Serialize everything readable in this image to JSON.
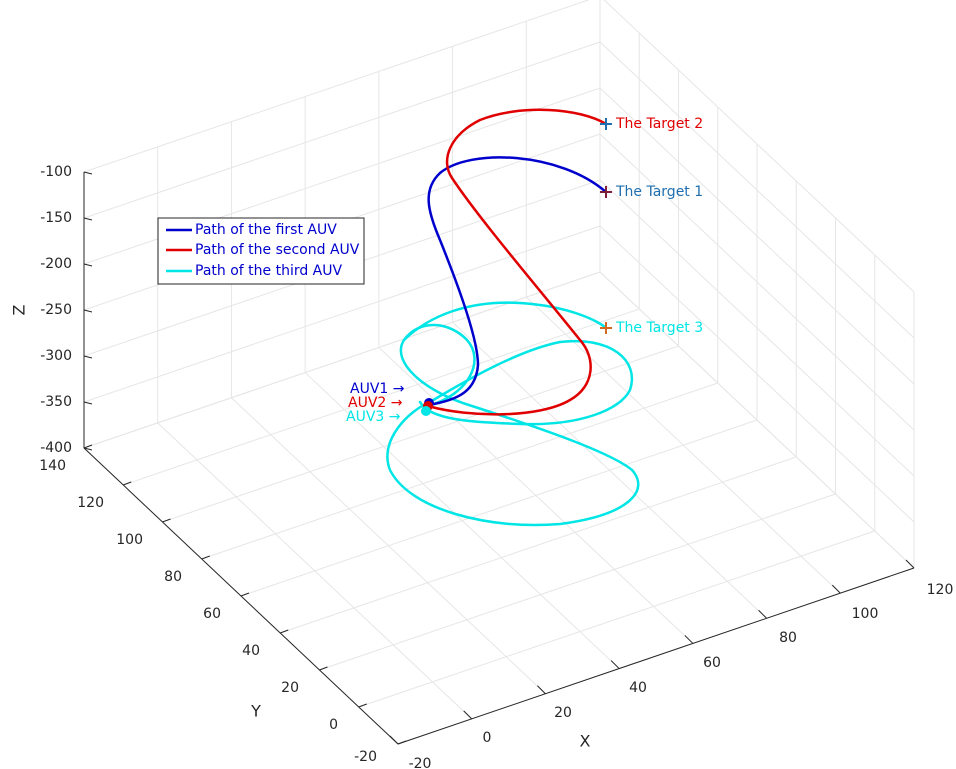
{
  "chart_data": {
    "type": "line3d",
    "xlabel": "X",
    "ylabel": "Y",
    "zlabel": "Z",
    "xlim": [
      -20,
      120
    ],
    "ylim": [
      -20,
      140
    ],
    "zlim": [
      -400,
      -100
    ],
    "x_ticks": [
      "-20",
      "0",
      "20",
      "40",
      "60",
      "80",
      "100",
      "120"
    ],
    "y_ticks": [
      "-20",
      "0",
      "20",
      "40",
      "60",
      "80",
      "100",
      "120",
      "140"
    ],
    "z_ticks": [
      "-100",
      "-150",
      "-200",
      "-250",
      "-300",
      "-350",
      "-400"
    ],
    "grid": true,
    "legend_position": "upper-left",
    "colors": {
      "auv1": "#0000cd",
      "auv2": "#e00000",
      "auv3": "#00e5e5",
      "axis": "#262626",
      "grid": "#e6e6e6"
    },
    "series": [
      {
        "name": "Path of the first AUV",
        "color": "#0000cd"
      },
      {
        "name": "Path of the second AUV",
        "color": "#e00000"
      },
      {
        "name": "Path of the third AUV",
        "color": "#00e5e5"
      }
    ],
    "annotations": {
      "start1": "AUV1 →",
      "start2": "AUV2 →",
      "start3": "AUV3 →",
      "target1": "The Target 1",
      "target2": "The Target 2",
      "target3": "The Target 3"
    }
  }
}
